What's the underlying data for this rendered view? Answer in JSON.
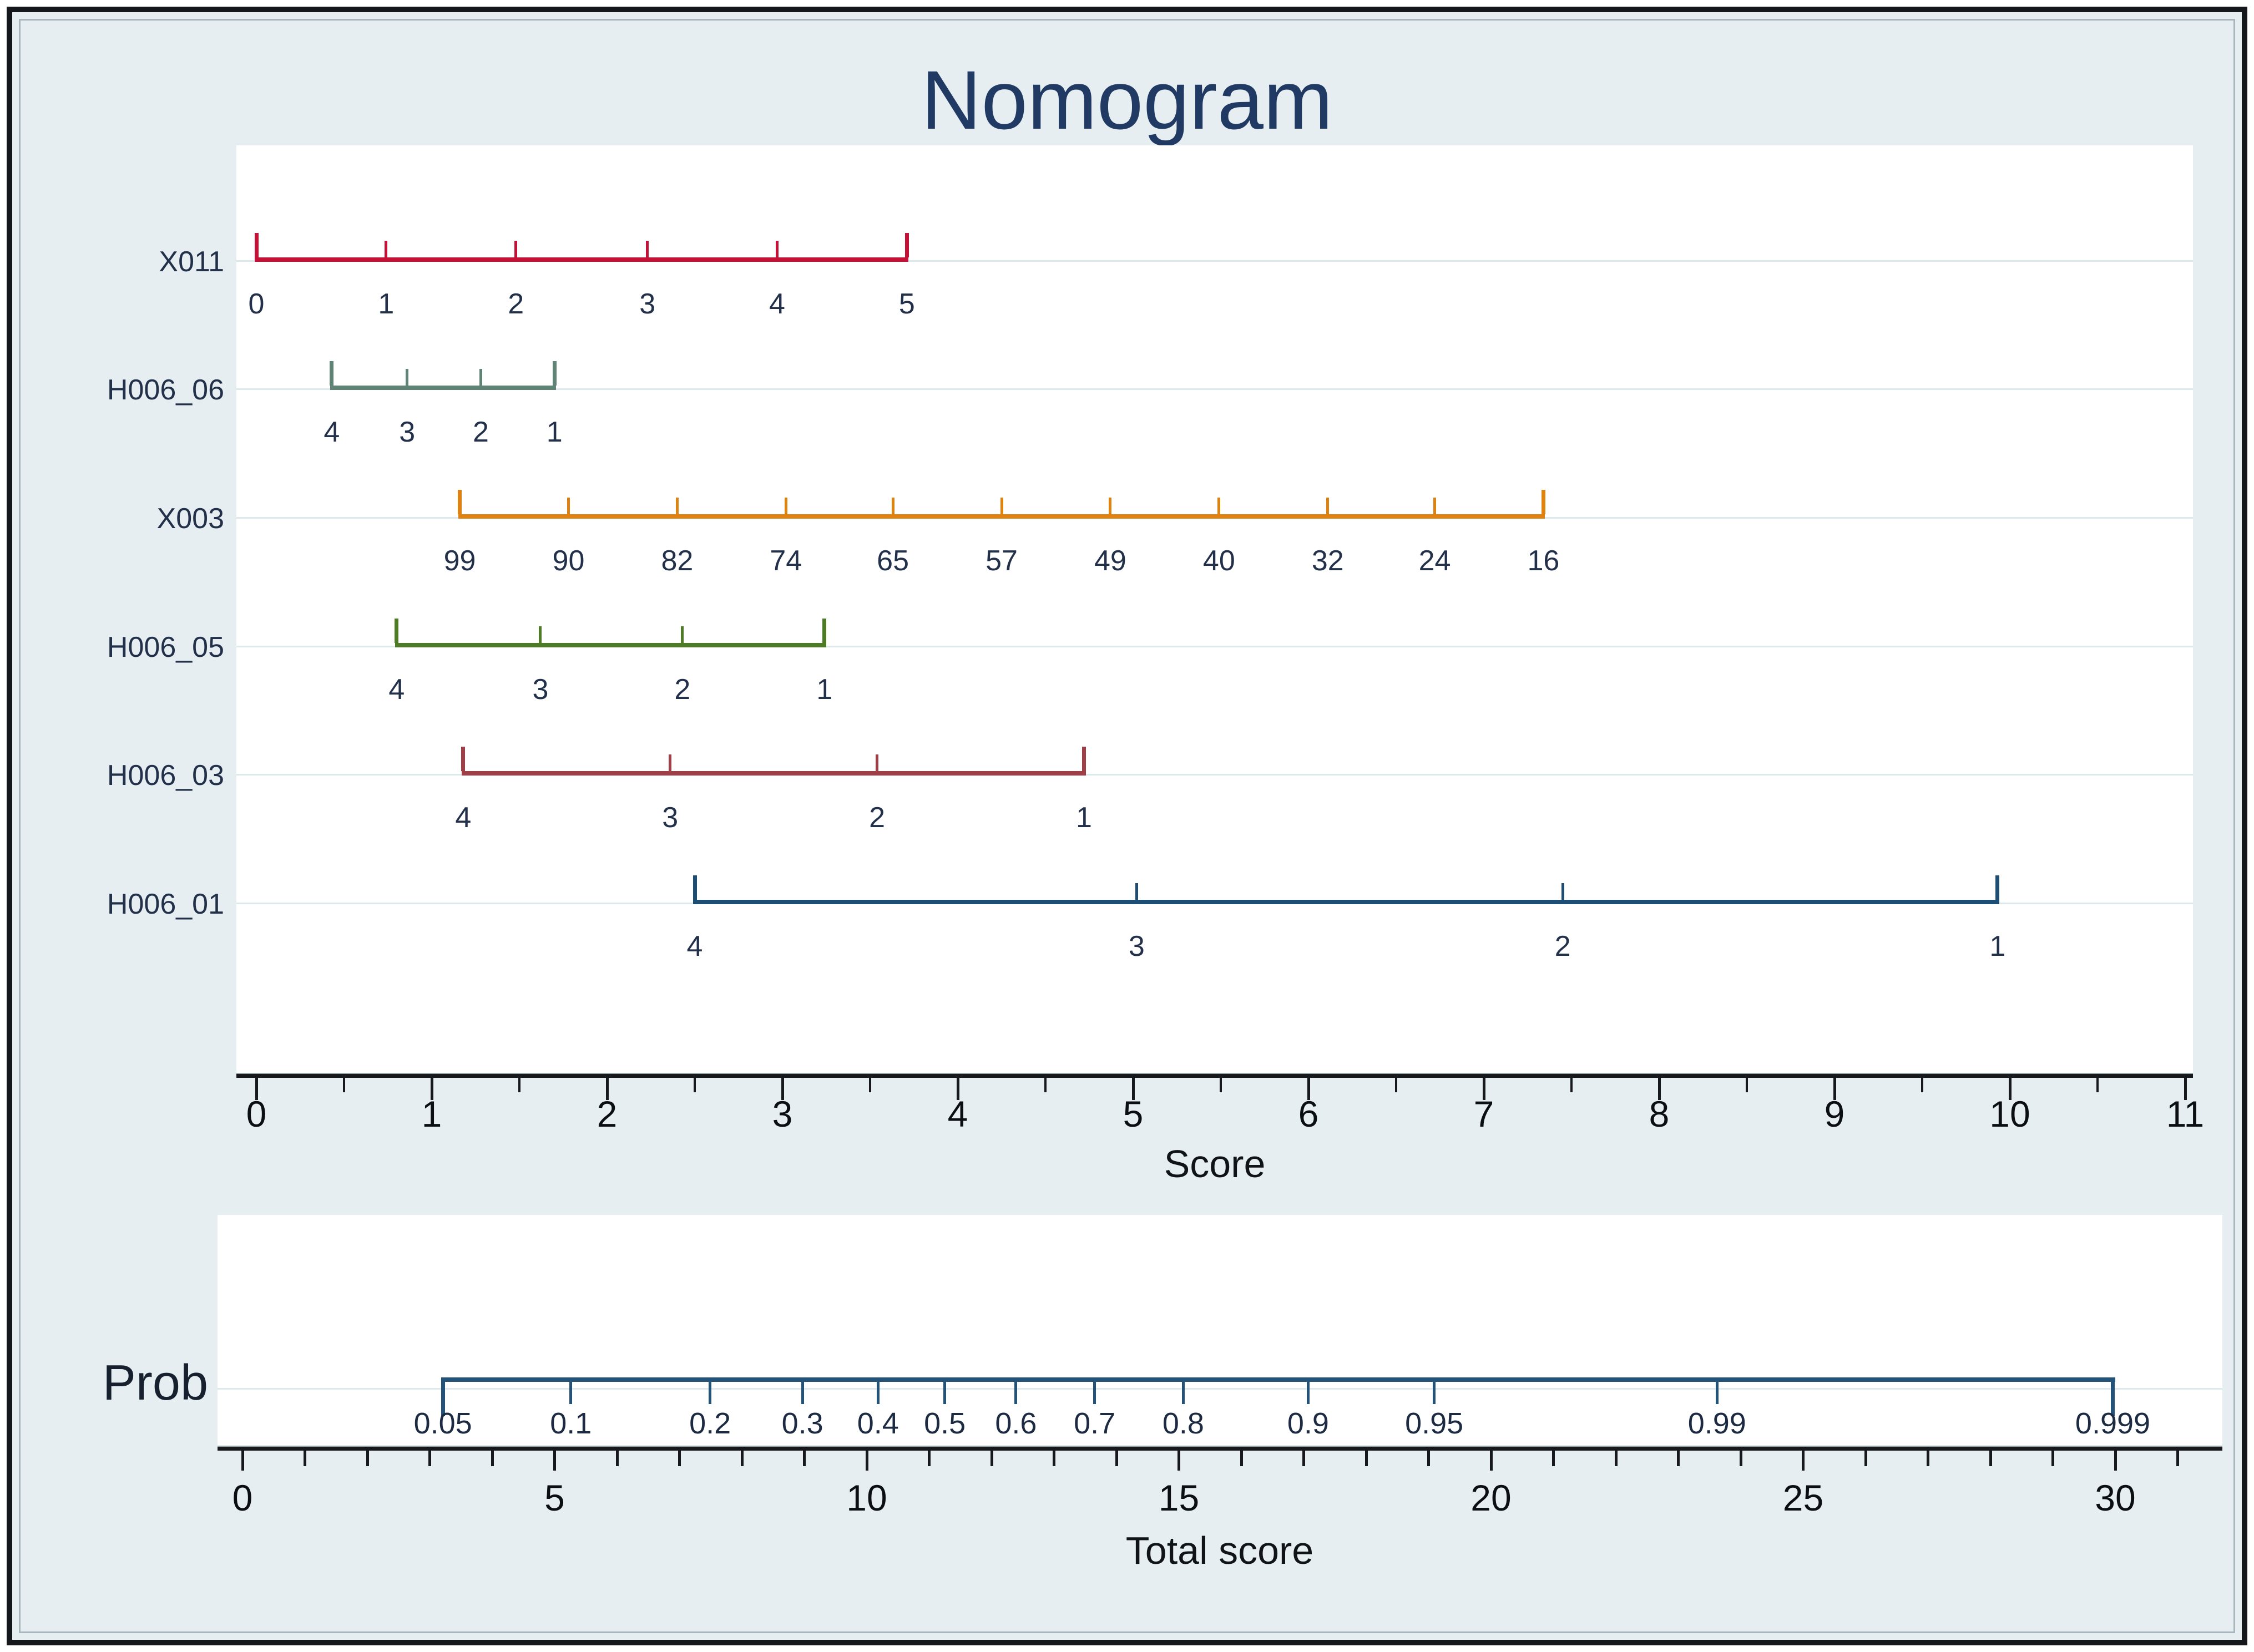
{
  "title": "Nomogram",
  "chart_data": {
    "type": "line",
    "subtype": "nomogram",
    "title": "Nomogram",
    "background_color": "#e7eef1",
    "panel_color": "#ffffff",
    "score_axis": {
      "label": "Score",
      "min": 0,
      "max": 11,
      "majors": [
        0,
        1,
        2,
        3,
        4,
        5,
        6,
        7,
        8,
        9,
        10,
        11
      ],
      "minor_step": 0.5
    },
    "scales": [
      {
        "name": "X011",
        "color": "#c41236",
        "ticks": [
          {
            "label": "0",
            "score": 0.0
          },
          {
            "label": "1",
            "score": 0.74
          },
          {
            "label": "2",
            "score": 1.48
          },
          {
            "label": "3",
            "score": 2.23
          },
          {
            "label": "4",
            "score": 2.97
          },
          {
            "label": "5",
            "score": 3.71
          }
        ]
      },
      {
        "name": "H006_06",
        "color": "#5f8374",
        "ticks": [
          {
            "label": "4",
            "score": 0.43
          },
          {
            "label": "3",
            "score": 0.86
          },
          {
            "label": "2",
            "score": 1.28
          },
          {
            "label": "1",
            "score": 1.7
          }
        ]
      },
      {
        "name": "X003",
        "color": "#e0820f",
        "ticks": [
          {
            "label": "99",
            "score": 1.16
          },
          {
            "label": "90",
            "score": 1.78
          },
          {
            "label": "82",
            "score": 2.4
          },
          {
            "label": "74",
            "score": 3.02
          },
          {
            "label": "65",
            "score": 3.63
          },
          {
            "label": "57",
            "score": 4.25
          },
          {
            "label": "49",
            "score": 4.87
          },
          {
            "label": "40",
            "score": 5.49
          },
          {
            "label": "32",
            "score": 6.11
          },
          {
            "label": "24",
            "score": 6.72
          },
          {
            "label": "16",
            "score": 7.34
          }
        ]
      },
      {
        "name": "H006_05",
        "color": "#4e7b26",
        "ticks": [
          {
            "label": "4",
            "score": 0.8
          },
          {
            "label": "3",
            "score": 1.62
          },
          {
            "label": "2",
            "score": 2.43
          },
          {
            "label": "1",
            "score": 3.24
          }
        ]
      },
      {
        "name": "H006_03",
        "color": "#9e3e47",
        "ticks": [
          {
            "label": "4",
            "score": 1.18
          },
          {
            "label": "3",
            "score": 2.36
          },
          {
            "label": "2",
            "score": 3.54
          },
          {
            "label": "1",
            "score": 4.72
          }
        ]
      },
      {
        "name": "H006_01",
        "color": "#1f4e74",
        "ticks": [
          {
            "label": "4",
            "score": 2.5
          },
          {
            "label": "3",
            "score": 5.02
          },
          {
            "label": "2",
            "score": 7.45
          },
          {
            "label": "1",
            "score": 9.93
          }
        ]
      }
    ],
    "prob_scale": {
      "name": "Prob",
      "color": "#24537a",
      "ticks": [
        {
          "label": "0.05",
          "total": 3.21
        },
        {
          "label": "0.1",
          "total": 5.26
        },
        {
          "label": "0.2",
          "total": 7.49
        },
        {
          "label": "0.3",
          "total": 8.97
        },
        {
          "label": "0.4",
          "total": 10.18
        },
        {
          "label": "0.5",
          "total": 11.25
        },
        {
          "label": "0.6",
          "total": 12.39
        },
        {
          "label": "0.7",
          "total": 13.65
        },
        {
          "label": "0.8",
          "total": 15.07
        },
        {
          "label": "0.9",
          "total": 17.07
        },
        {
          "label": "0.95",
          "total": 19.09
        },
        {
          "label": "0.99",
          "total": 23.62
        },
        {
          "label": "0.999",
          "total": 29.96
        }
      ]
    },
    "total_axis": {
      "label": "Total score",
      "min": 0,
      "max": 31,
      "majors": [
        0,
        5,
        10,
        15,
        20,
        25,
        30
      ],
      "minor_step": 1
    }
  }
}
